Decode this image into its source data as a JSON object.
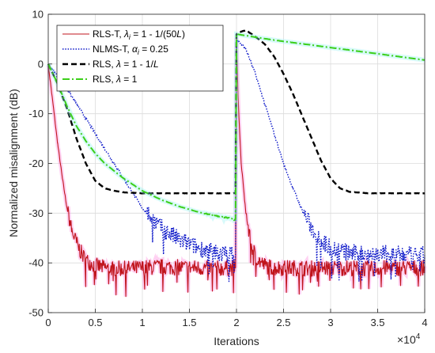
{
  "chart_data": {
    "type": "line",
    "title": "",
    "xlabel": "Iterations",
    "ylabel": "Normalized misalignment (dB)",
    "x_multiplier_label": "×10",
    "x_multiplier_exponent": "4",
    "xlim": [
      0,
      4
    ],
    "ylim": [
      -50,
      10
    ],
    "xticks": [
      "0",
      "0.5",
      "1",
      "1.5",
      "2",
      "2.5",
      "3",
      "3.5",
      "4"
    ],
    "xtick_values": [
      0,
      0.5,
      1,
      1.5,
      2,
      2.5,
      3,
      3.5,
      4
    ],
    "yticks": [
      "10",
      "0",
      "-10",
      "-20",
      "-30",
      "-40",
      "-50"
    ],
    "ytick_values": [
      10,
      0,
      -10,
      -20,
      -30,
      -40,
      -50
    ],
    "grid": true,
    "legend_position": "top-left",
    "colors": {
      "rls_t": "#c0141c",
      "nlms_t": "#0b16c8",
      "rls_l": "#000000",
      "rls_1": "#3ccf1a",
      "shadow": "#ff7ad9"
    },
    "series": [
      {
        "key": "rls_t",
        "legend": {
          "base": "RLS-T, ",
          "sym": "λ",
          "sub": "i",
          "rest": " = 1 - 1/(50",
          "it": "L",
          "close": ")"
        },
        "x": [
          0,
          0.05,
          0.1,
          0.15,
          0.2,
          0.25,
          0.3,
          0.35,
          0.4,
          0.5,
          0.6,
          0.8,
          1.0,
          1.2,
          1.4,
          1.6,
          1.8,
          1.99,
          2.0,
          2.02,
          2.05,
          2.1,
          2.15,
          2.2,
          2.25,
          2.3,
          2.35,
          2.4,
          2.5,
          2.6,
          2.8,
          3.0,
          3.2,
          3.4,
          3.6,
          3.8,
          4.0
        ],
        "y": [
          0,
          -8,
          -16,
          -23,
          -29,
          -33.5,
          -36,
          -38,
          -39.5,
          -40.5,
          -41,
          -41.2,
          -41,
          -40.8,
          -40.9,
          -41,
          -41.1,
          -41,
          5,
          -8,
          -20,
          -30,
          -36,
          -38.5,
          -39.8,
          -40.5,
          -40.8,
          -41,
          -41,
          -41,
          -41.1,
          -41,
          -41,
          -41.2,
          -41,
          -41,
          -41
        ]
      },
      {
        "key": "nlms_t",
        "legend": {
          "base": "NLMS-T, ",
          "sym": "α",
          "sub": "i",
          "rest": " = 0.25",
          "it": "",
          "close": ""
        },
        "x": [
          0,
          0.2,
          0.4,
          0.6,
          0.8,
          1.0,
          1.2,
          1.4,
          1.6,
          1.8,
          1.99,
          2.0,
          2.1,
          2.2,
          2.3,
          2.4,
          2.5,
          2.6,
          2.7,
          2.8,
          2.9,
          3.0,
          3.2,
          3.4,
          3.6,
          3.8,
          4.0
        ],
        "y": [
          0,
          -5,
          -11,
          -17,
          -23,
          -29,
          -33,
          -35.5,
          -37,
          -38,
          -38.5,
          5,
          3,
          -2,
          -8,
          -14,
          -20,
          -25,
          -29.5,
          -33,
          -35.5,
          -37,
          -38,
          -38.2,
          -38.3,
          -38.5,
          -38.5
        ]
      },
      {
        "key": "rls_l",
        "legend": {
          "base": "RLS, ",
          "sym": "λ",
          "sub": "",
          "rest": " = 1 - 1/",
          "it": "L",
          "close": ""
        },
        "x": [
          0,
          0.1,
          0.2,
          0.3,
          0.4,
          0.5,
          0.6,
          0.7,
          0.8,
          1.0,
          1.2,
          1.4,
          1.6,
          1.8,
          1.99,
          2.0,
          2.05,
          2.1,
          2.2,
          2.3,
          2.4,
          2.5,
          2.6,
          2.7,
          2.8,
          2.9,
          3.0,
          3.1,
          3.2,
          3.4,
          3.6,
          3.8,
          4.0
        ],
        "y": [
          0,
          -4,
          -9,
          -15,
          -20,
          -23.5,
          -25,
          -25.5,
          -25.8,
          -26,
          -26,
          -26,
          -26,
          -26,
          -26,
          6,
          6.5,
          6.8,
          5.5,
          4,
          1.5,
          -2,
          -6,
          -10.5,
          -15,
          -19.5,
          -23,
          -25,
          -25.7,
          -26,
          -26,
          -26,
          -26
        ]
      },
      {
        "key": "rls_1",
        "legend": {
          "base": "RLS, ",
          "sym": "λ",
          "sub": "",
          "rest": " = 1",
          "it": "",
          "close": ""
        },
        "x": [
          0,
          0.1,
          0.2,
          0.3,
          0.4,
          0.5,
          0.6,
          0.8,
          1.0,
          1.2,
          1.4,
          1.6,
          1.8,
          1.99,
          2.0,
          2.2,
          2.4,
          2.6,
          2.8,
          3.0,
          3.2,
          3.4,
          3.6,
          3.8,
          4.0
        ],
        "y": [
          0,
          -4,
          -8.5,
          -12.5,
          -15.5,
          -18,
          -20,
          -23,
          -25.5,
          -27.3,
          -28.7,
          -29.8,
          -30.6,
          -31.2,
          6,
          5.4,
          4.8,
          4.3,
          3.8,
          3.3,
          2.8,
          2.3,
          1.8,
          1.3,
          0.8
        ]
      }
    ]
  }
}
